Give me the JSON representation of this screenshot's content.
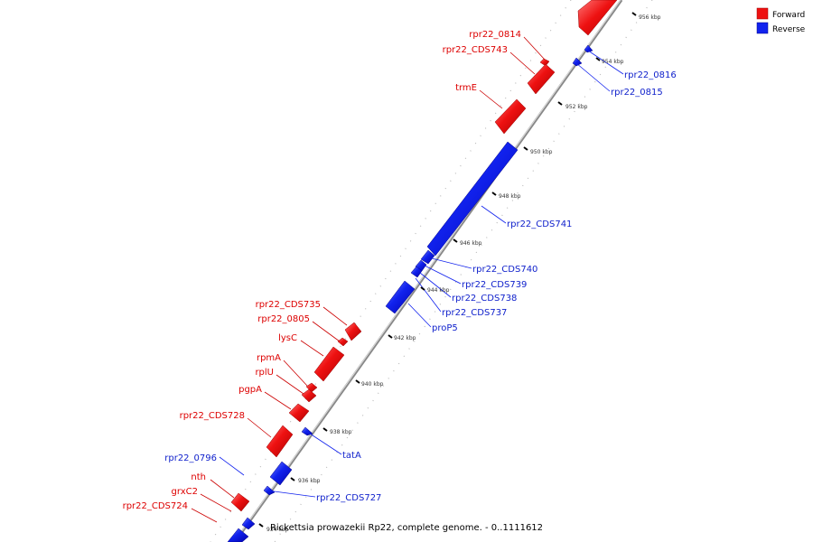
{
  "caption": "Rickettsia prowazekii Rp22, complete genome. - 0..1111612",
  "colors": {
    "forward": "#ee1111",
    "reverse": "#1122ee"
  },
  "legend": [
    {
      "label": "Forward",
      "color": "#ee1111"
    },
    {
      "label": "Reverse",
      "color": "#1122ee"
    }
  ],
  "ticks": [
    "934 kbp",
    "936 kbp",
    "938 kbp",
    "940 kbp",
    "942 kbp",
    "944 kbp",
    "946 kbp",
    "948 kbp",
    "950 kbp",
    "952 kbp",
    "954 kbp",
    "956 kbp"
  ],
  "forward_labels": [
    "rpr22_0814",
    "rpr22_CDS743",
    "trmE",
    "rpr22_CDS735",
    "rpr22_0805",
    "lysC",
    "rpmA",
    "rplU",
    "pgpA",
    "rpr22_CDS728",
    "nth",
    "grxC2",
    "rpr22_CDS724"
  ],
  "reverse_labels": [
    "rpr22_0816",
    "rpr22_0815",
    "rpr22_CDS741",
    "rpr22_CDS740",
    "rpr22_CDS739",
    "rpr22_CDS738",
    "rpr22_CDS737",
    "proP5",
    "tatA",
    "rpr22_0796",
    "rpr22_CDS727"
  ]
}
